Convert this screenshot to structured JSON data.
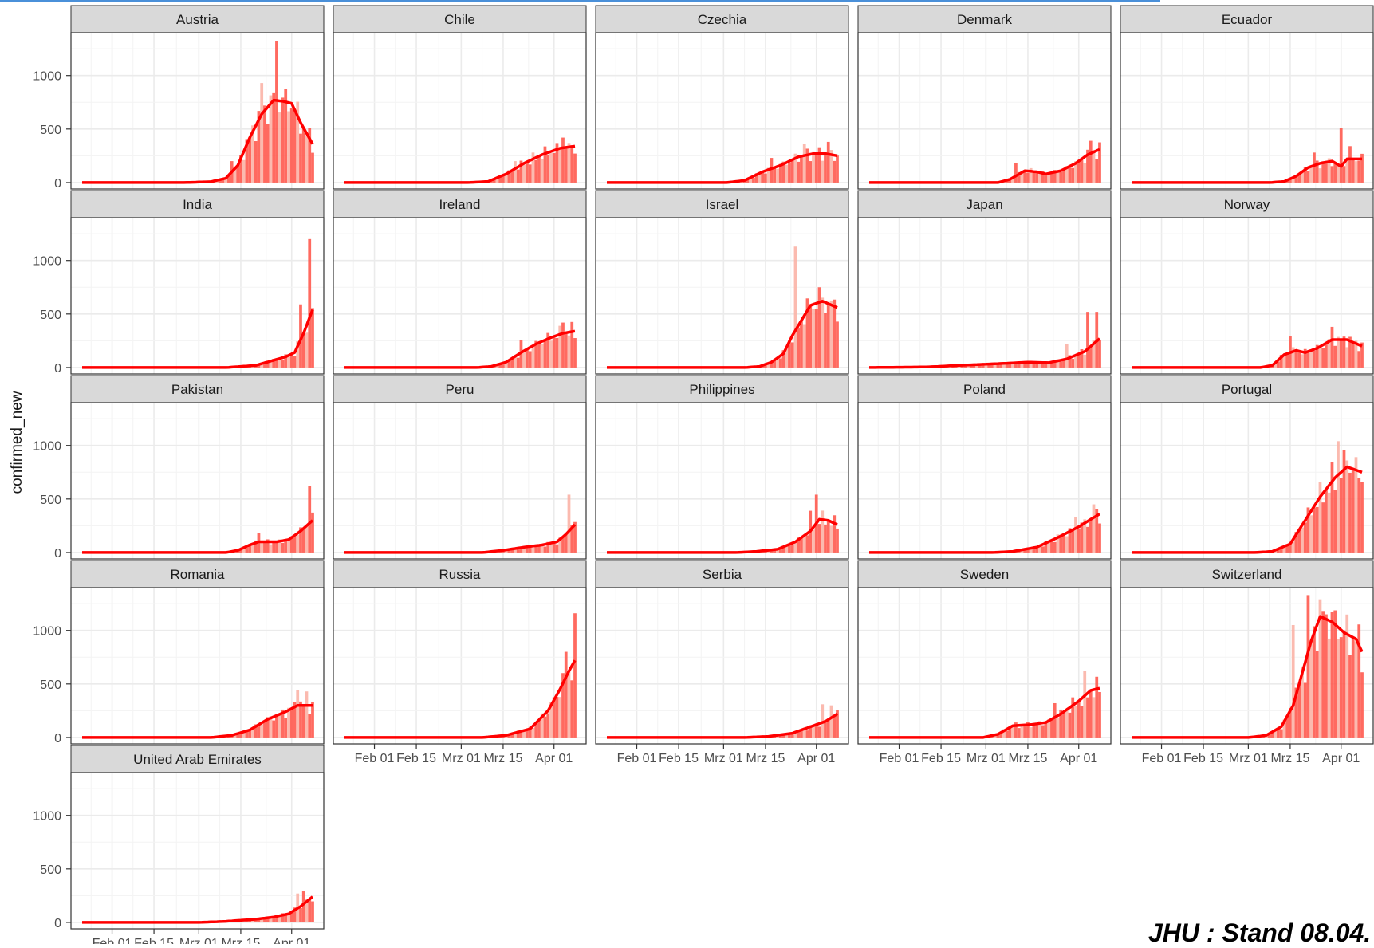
{
  "source_note": "JHU : Stand 08.04.",
  "colors": {
    "bar": "#ff5a4f",
    "bar_light": "#fbb3a6",
    "line": "#ff0000",
    "strip": "#d9d9d9",
    "grid": "#ebebeb"
  },
  "chart_data": {
    "type": "faceted bar + line",
    "ylabel": "confirmed_new",
    "xlabel": "",
    "y_ticks": [
      0,
      500,
      1000
    ],
    "ylim": [
      -60,
      1400
    ],
    "x_range": [
      "2020-01-22",
      "2020-04-08"
    ],
    "x_ticks": [
      {
        "date": "2020-02-01",
        "label": "Feb 01"
      },
      {
        "date": "2020-02-15",
        "label": "Feb 15"
      },
      {
        "date": "2020-03-01",
        "label": "Mrz 01"
      },
      {
        "date": "2020-03-15",
        "label": "Mrz 15"
      },
      {
        "date": "2020-04-01",
        "label": "Apr 01"
      }
    ],
    "grid": true,
    "legend": "none",
    "facets": [
      {
        "name": "Austria",
        "anchors": [
          [
            "2020-01-22",
            0
          ],
          [
            "2020-02-25",
            0
          ],
          [
            "2020-03-05",
            8
          ],
          [
            "2020-03-10",
            40
          ],
          [
            "2020-03-14",
            160
          ],
          [
            "2020-03-18",
            420
          ],
          [
            "2020-03-22",
            640
          ],
          [
            "2020-03-26",
            770
          ],
          [
            "2020-03-29",
            760
          ],
          [
            "2020-04-01",
            740
          ],
          [
            "2020-04-04",
            560
          ],
          [
            "2020-04-08",
            360
          ]
        ],
        "spikes": [
          [
            "2020-03-27",
            1320
          ],
          [
            "2020-03-22",
            930
          ],
          [
            "2020-03-12",
            200
          ]
        ]
      },
      {
        "name": "Chile",
        "anchors": [
          [
            "2020-01-22",
            0
          ],
          [
            "2020-03-03",
            0
          ],
          [
            "2020-03-10",
            10
          ],
          [
            "2020-03-16",
            80
          ],
          [
            "2020-03-22",
            180
          ],
          [
            "2020-03-28",
            260
          ],
          [
            "2020-04-03",
            320
          ],
          [
            "2020-04-08",
            340
          ]
        ],
        "spikes": [
          [
            "2020-03-19",
            200
          ],
          [
            "2020-04-04",
            420
          ]
        ]
      },
      {
        "name": "Czechia",
        "anchors": [
          [
            "2020-01-22",
            0
          ],
          [
            "2020-03-02",
            0
          ],
          [
            "2020-03-08",
            20
          ],
          [
            "2020-03-14",
            100
          ],
          [
            "2020-03-20",
            160
          ],
          [
            "2020-03-26",
            240
          ],
          [
            "2020-03-31",
            270
          ],
          [
            "2020-04-04",
            270
          ],
          [
            "2020-04-08",
            250
          ]
        ],
        "spikes": [
          [
            "2020-03-17",
            230
          ],
          [
            "2020-03-28",
            360
          ],
          [
            "2020-04-05",
            380
          ]
        ]
      },
      {
        "name": "Denmark",
        "anchors": [
          [
            "2020-01-22",
            0
          ],
          [
            "2020-03-05",
            0
          ],
          [
            "2020-03-09",
            30
          ],
          [
            "2020-03-14",
            110
          ],
          [
            "2020-03-18",
            100
          ],
          [
            "2020-03-21",
            80
          ],
          [
            "2020-03-26",
            110
          ],
          [
            "2020-03-31",
            180
          ],
          [
            "2020-04-04",
            260
          ],
          [
            "2020-04-08",
            310
          ]
        ],
        "spikes": [
          [
            "2020-03-11",
            180
          ],
          [
            "2020-04-05",
            390
          ]
        ]
      },
      {
        "name": "Ecuador",
        "anchors": [
          [
            "2020-01-22",
            0
          ],
          [
            "2020-03-08",
            0
          ],
          [
            "2020-03-13",
            10
          ],
          [
            "2020-03-17",
            60
          ],
          [
            "2020-03-21",
            140
          ],
          [
            "2020-03-25",
            180
          ],
          [
            "2020-03-29",
            200
          ],
          [
            "2020-04-01",
            150
          ],
          [
            "2020-04-03",
            220
          ],
          [
            "2020-04-08",
            220
          ]
        ],
        "spikes": [
          [
            "2020-03-23",
            280
          ],
          [
            "2020-04-01",
            510
          ],
          [
            "2020-04-04",
            340
          ]
        ]
      },
      {
        "name": "India",
        "anchors": [
          [
            "2020-01-22",
            0
          ],
          [
            "2020-03-10",
            0
          ],
          [
            "2020-03-15",
            10
          ],
          [
            "2020-03-20",
            20
          ],
          [
            "2020-03-25",
            60
          ],
          [
            "2020-03-30",
            100
          ],
          [
            "2020-04-02",
            140
          ],
          [
            "2020-04-05",
            320
          ],
          [
            "2020-04-08",
            540
          ]
        ],
        "spikes": [
          [
            "2020-04-07",
            1200
          ],
          [
            "2020-04-04",
            590
          ]
        ]
      },
      {
        "name": "Ireland",
        "anchors": [
          [
            "2020-01-22",
            0
          ],
          [
            "2020-03-06",
            0
          ],
          [
            "2020-03-11",
            10
          ],
          [
            "2020-03-16",
            50
          ],
          [
            "2020-03-21",
            140
          ],
          [
            "2020-03-26",
            220
          ],
          [
            "2020-03-31",
            280
          ],
          [
            "2020-04-04",
            320
          ],
          [
            "2020-04-08",
            340
          ]
        ],
        "spikes": [
          [
            "2020-03-21",
            260
          ],
          [
            "2020-04-04",
            420
          ]
        ]
      },
      {
        "name": "Israel",
        "anchors": [
          [
            "2020-01-22",
            0
          ],
          [
            "2020-03-08",
            0
          ],
          [
            "2020-03-13",
            10
          ],
          [
            "2020-03-17",
            50
          ],
          [
            "2020-03-21",
            130
          ],
          [
            "2020-03-24",
            300
          ],
          [
            "2020-03-27",
            440
          ],
          [
            "2020-03-30",
            580
          ],
          [
            "2020-04-03",
            620
          ],
          [
            "2020-04-08",
            560
          ]
        ],
        "spikes": [
          [
            "2020-03-25",
            1130
          ],
          [
            "2020-04-02",
            750
          ]
        ]
      },
      {
        "name": "Japan",
        "anchors": [
          [
            "2020-01-22",
            0
          ],
          [
            "2020-02-10",
            5
          ],
          [
            "2020-02-25",
            25
          ],
          [
            "2020-03-08",
            40
          ],
          [
            "2020-03-15",
            50
          ],
          [
            "2020-03-22",
            45
          ],
          [
            "2020-03-28",
            80
          ],
          [
            "2020-04-03",
            150
          ],
          [
            "2020-04-08",
            270
          ]
        ],
        "spikes": [
          [
            "2020-03-28",
            220
          ],
          [
            "2020-04-04",
            520
          ],
          [
            "2020-04-07",
            520
          ]
        ]
      },
      {
        "name": "Norway",
        "anchors": [
          [
            "2020-01-22",
            0
          ],
          [
            "2020-03-05",
            0
          ],
          [
            "2020-03-09",
            20
          ],
          [
            "2020-03-13",
            120
          ],
          [
            "2020-03-17",
            160
          ],
          [
            "2020-03-20",
            140
          ],
          [
            "2020-03-24",
            180
          ],
          [
            "2020-03-29",
            260
          ],
          [
            "2020-04-03",
            260
          ],
          [
            "2020-04-08",
            200
          ]
        ],
        "spikes": [
          [
            "2020-03-15",
            290
          ],
          [
            "2020-03-29",
            380
          ]
        ]
      },
      {
        "name": "Pakistan",
        "anchors": [
          [
            "2020-01-22",
            0
          ],
          [
            "2020-03-10",
            0
          ],
          [
            "2020-03-14",
            20
          ],
          [
            "2020-03-18",
            70
          ],
          [
            "2020-03-21",
            100
          ],
          [
            "2020-03-27",
            100
          ],
          [
            "2020-03-31",
            120
          ],
          [
            "2020-04-04",
            200
          ],
          [
            "2020-04-08",
            300
          ]
        ],
        "spikes": [
          [
            "2020-04-07",
            620
          ],
          [
            "2020-03-21",
            180
          ]
        ]
      },
      {
        "name": "Peru",
        "anchors": [
          [
            "2020-01-22",
            0
          ],
          [
            "2020-03-08",
            0
          ],
          [
            "2020-03-15",
            20
          ],
          [
            "2020-03-22",
            50
          ],
          [
            "2020-03-28",
            70
          ],
          [
            "2020-04-02",
            100
          ],
          [
            "2020-04-05",
            170
          ],
          [
            "2020-04-08",
            260
          ]
        ],
        "spikes": [
          [
            "2020-04-06",
            540
          ]
        ]
      },
      {
        "name": "Philippines",
        "anchors": [
          [
            "2020-01-22",
            0
          ],
          [
            "2020-03-05",
            0
          ],
          [
            "2020-03-12",
            10
          ],
          [
            "2020-03-19",
            30
          ],
          [
            "2020-03-25",
            100
          ],
          [
            "2020-03-30",
            200
          ],
          [
            "2020-04-02",
            310
          ],
          [
            "2020-04-05",
            300
          ],
          [
            "2020-04-08",
            260
          ]
        ],
        "spikes": [
          [
            "2020-04-01",
            540
          ],
          [
            "2020-03-30",
            390
          ]
        ]
      },
      {
        "name": "Poland",
        "anchors": [
          [
            "2020-01-22",
            0
          ],
          [
            "2020-03-03",
            0
          ],
          [
            "2020-03-10",
            10
          ],
          [
            "2020-03-18",
            50
          ],
          [
            "2020-03-25",
            140
          ],
          [
            "2020-04-01",
            240
          ],
          [
            "2020-04-05",
            310
          ],
          [
            "2020-04-08",
            360
          ]
        ],
        "spikes": [
          [
            "2020-04-06",
            450
          ],
          [
            "2020-03-31",
            330
          ]
        ]
      },
      {
        "name": "Portugal",
        "anchors": [
          [
            "2020-01-22",
            0
          ],
          [
            "2020-03-03",
            0
          ],
          [
            "2020-03-09",
            10
          ],
          [
            "2020-03-15",
            80
          ],
          [
            "2020-03-20",
            300
          ],
          [
            "2020-03-25",
            520
          ],
          [
            "2020-03-30",
            700
          ],
          [
            "2020-04-03",
            800
          ],
          [
            "2020-04-08",
            750
          ]
        ],
        "spikes": [
          [
            "2020-03-31",
            1040
          ],
          [
            "2020-04-03",
            860
          ]
        ]
      },
      {
        "name": "Romania",
        "anchors": [
          [
            "2020-01-22",
            0
          ],
          [
            "2020-03-05",
            0
          ],
          [
            "2020-03-12",
            20
          ],
          [
            "2020-03-18",
            70
          ],
          [
            "2020-03-24",
            170
          ],
          [
            "2020-03-30",
            240
          ],
          [
            "2020-04-03",
            300
          ],
          [
            "2020-04-08",
            300
          ]
        ],
        "spikes": [
          [
            "2020-04-03",
            440
          ],
          [
            "2020-04-06",
            430
          ]
        ]
      },
      {
        "name": "Russia",
        "anchors": [
          [
            "2020-01-22",
            0
          ],
          [
            "2020-03-08",
            0
          ],
          [
            "2020-03-16",
            20
          ],
          [
            "2020-03-24",
            80
          ],
          [
            "2020-03-30",
            250
          ],
          [
            "2020-04-03",
            450
          ],
          [
            "2020-04-06",
            620
          ],
          [
            "2020-04-08",
            720
          ]
        ],
        "spikes": [
          [
            "2020-04-08",
            1160
          ],
          [
            "2020-04-05",
            800
          ]
        ]
      },
      {
        "name": "Serbia",
        "anchors": [
          [
            "2020-01-22",
            0
          ],
          [
            "2020-03-08",
            0
          ],
          [
            "2020-03-16",
            10
          ],
          [
            "2020-03-24",
            40
          ],
          [
            "2020-03-30",
            100
          ],
          [
            "2020-04-04",
            150
          ],
          [
            "2020-04-08",
            220
          ]
        ],
        "spikes": [
          [
            "2020-04-03",
            310
          ],
          [
            "2020-04-06",
            300
          ]
        ]
      },
      {
        "name": "Sweden",
        "anchors": [
          [
            "2020-01-22",
            0
          ],
          [
            "2020-02-29",
            0
          ],
          [
            "2020-03-05",
            30
          ],
          [
            "2020-03-10",
            110
          ],
          [
            "2020-03-16",
            120
          ],
          [
            "2020-03-21",
            140
          ],
          [
            "2020-03-26",
            220
          ],
          [
            "2020-04-01",
            340
          ],
          [
            "2020-04-05",
            440
          ],
          [
            "2020-04-08",
            460
          ]
        ],
        "spikes": [
          [
            "2020-04-03",
            620
          ],
          [
            "2020-03-24",
            320
          ]
        ]
      },
      {
        "name": "Switzerland",
        "anchors": [
          [
            "2020-01-22",
            0
          ],
          [
            "2020-03-01",
            0
          ],
          [
            "2020-03-07",
            20
          ],
          [
            "2020-03-12",
            100
          ],
          [
            "2020-03-16",
            300
          ],
          [
            "2020-03-19",
            600
          ],
          [
            "2020-03-22",
            900
          ],
          [
            "2020-03-25",
            1130
          ],
          [
            "2020-03-29",
            1080
          ],
          [
            "2020-04-02",
            980
          ],
          [
            "2020-04-06",
            920
          ],
          [
            "2020-04-08",
            800
          ]
        ],
        "spikes": [
          [
            "2020-03-21",
            1330
          ],
          [
            "2020-03-16",
            1050
          ],
          [
            "2020-03-27",
            1150
          ]
        ]
      },
      {
        "name": "United Arab Emirates",
        "anchors": [
          [
            "2020-01-22",
            0
          ],
          [
            "2020-03-01",
            0
          ],
          [
            "2020-03-10",
            10
          ],
          [
            "2020-03-20",
            30
          ],
          [
            "2020-03-26",
            50
          ],
          [
            "2020-03-31",
            80
          ],
          [
            "2020-04-04",
            150
          ],
          [
            "2020-04-08",
            240
          ]
        ],
        "spikes": [
          [
            "2020-04-05",
            290
          ],
          [
            "2020-04-03",
            270
          ]
        ]
      }
    ]
  }
}
